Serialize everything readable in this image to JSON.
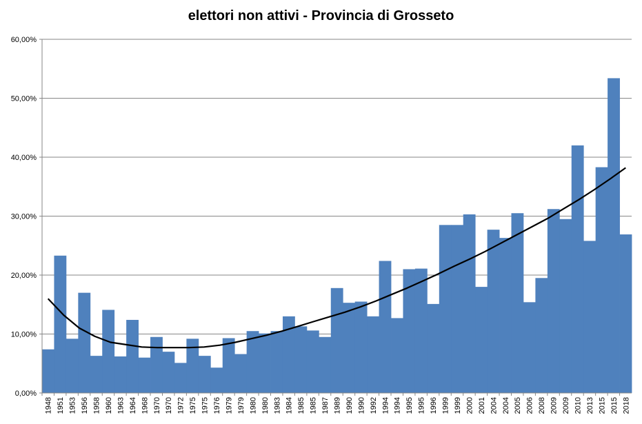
{
  "chart_data": {
    "type": "bar",
    "title": "elettori non attivi - Provincia di Grosseto",
    "xlabel": "",
    "ylabel": "",
    "ylim": [
      0,
      60
    ],
    "y_tick_values": [
      0,
      10,
      20,
      30,
      40,
      50,
      60
    ],
    "y_tick_labels": [
      "0,00%",
      "10,00%",
      "20,00%",
      "30,00%",
      "40,00%",
      "50,00%",
      "60,00%"
    ],
    "grid": true,
    "legend": "none",
    "bar_color": "#4F81BD",
    "gridline_color": "#868686",
    "trendline_color": "#000000",
    "categories": [
      "1948",
      "1951",
      "1953",
      "1956",
      "1958",
      "1960",
      "1963",
      "1964",
      "1968",
      "1970",
      "1970",
      "1972",
      "1975",
      "1975",
      "1976",
      "1979",
      "1979",
      "1980",
      "1980",
      "1983",
      "1984",
      "1985",
      "1985",
      "1987",
      "1989",
      "1990",
      "1990",
      "1992",
      "1994",
      "1994",
      "1995",
      "1995",
      "1996",
      "1999",
      "1999",
      "2000",
      "2001",
      "2004",
      "2004",
      "2005",
      "2006",
      "2008",
      "2009",
      "2009",
      "2010",
      "2013",
      "2015",
      "2015",
      "2018"
    ],
    "values": [
      7.4,
      23.3,
      9.2,
      17.0,
      6.3,
      14.1,
      6.2,
      12.4,
      6.0,
      9.5,
      7.0,
      5.1,
      9.2,
      6.3,
      4.3,
      9.3,
      6.6,
      10.5,
      10.1,
      10.5,
      13.0,
      11.3,
      10.6,
      9.5,
      17.8,
      15.3,
      15.5,
      13.0,
      22.4,
      12.7,
      21.0,
      21.1,
      15.1,
      28.5,
      28.5,
      30.3,
      18.0,
      27.7,
      26.3,
      30.5,
      15.4,
      19.5,
      31.2,
      29.5,
      42.0,
      25.8,
      38.3,
      53.4,
      26.9
    ],
    "series": [
      {
        "name": "",
        "type": "bar"
      },
      {
        "name": "",
        "type": "trendline-polynomial"
      }
    ],
    "trendline_values": [
      16.0,
      13.2,
      11.0,
      9.6,
      8.6,
      8.2,
      7.8,
      7.7,
      7.7,
      7.7,
      7.8,
      8.1,
      8.6,
      9.2,
      9.8,
      10.5,
      11.3,
      12.1,
      12.9,
      13.7,
      14.6,
      15.6,
      16.7,
      17.8,
      19.0,
      20.2,
      21.5,
      22.7,
      24.0,
      25.4,
      26.8,
      28.2,
      29.6,
      31.2,
      32.8,
      34.5,
      36.3,
      38.2
    ]
  }
}
